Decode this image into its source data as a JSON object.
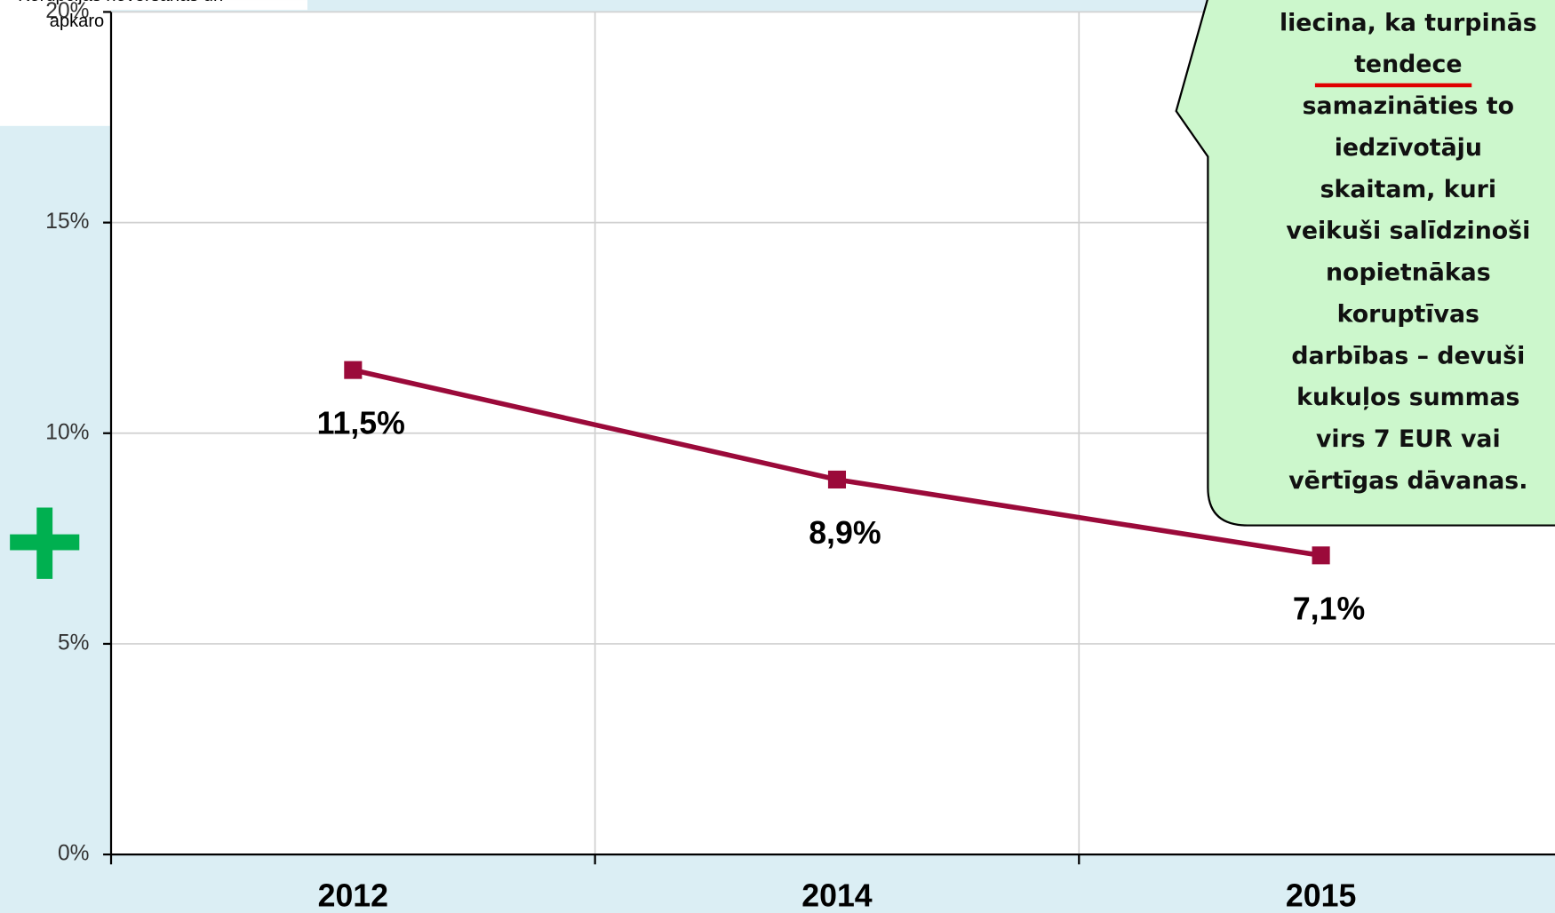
{
  "chart_data": {
    "type": "line",
    "categories": [
      "2012",
      "2014",
      "2015"
    ],
    "values": [
      11.5,
      8.9,
      7.1
    ],
    "value_labels": [
      "11,5%",
      "8,9%",
      "7,1%"
    ],
    "color": "#9b0a3a",
    "ylim": [
      0,
      20
    ],
    "yticks": [
      {
        "value": 0,
        "label": "0%"
      },
      {
        "value": 5,
        "label": "5%"
      },
      {
        "value": 10,
        "label": "10%"
      },
      {
        "value": 15,
        "label": "15%"
      },
      {
        "value": 20,
        "label": "20%"
      }
    ],
    "grid": true,
    "annotation": [
      "liecina, ka turpinās",
      "tendece",
      "samazināties to",
      "iedzīvotāju",
      "skaitam, kuri",
      "veikuši salīdzinoši",
      "nopietnākas",
      "koruptīvas",
      "darbības – devuši",
      "kukuļos summas",
      "virs 7 EUR vai",
      "vērtīgas dāvanas."
    ],
    "notes": [
      "Korupcijas novēršanas un",
      "apkaro"
    ]
  }
}
